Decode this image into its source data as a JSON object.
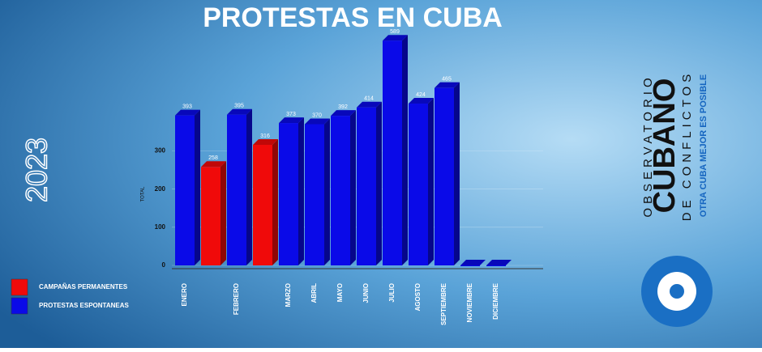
{
  "chart_data": {
    "type": "bar3d",
    "title": "PROTESTAS EN CUBA",
    "year": "2023",
    "y_label": "TOTAL",
    "categories": [
      "ENERO",
      "FEBRERO",
      "MARZO",
      "ABRIL",
      "MAYO",
      "JUNIO",
      "JULIO",
      "AGOSTO",
      "SEPTIEMBRE",
      "NOVIEMBRE",
      "DICIEMBRE"
    ],
    "series": [
      {
        "name": "PROTESTAS ESPONTANEAS",
        "color": "#0a0ae8",
        "values": [
          393,
          395,
          373,
          370,
          392,
          414,
          589,
          424,
          465,
          0,
          0
        ]
      },
      {
        "name": "CAMPAÑAS PERMANENTES",
        "color": "#f00a0a",
        "values": [
          258,
          316,
          null,
          null,
          null,
          null,
          null,
          null,
          null,
          null,
          null
        ]
      }
    ],
    "ylim": [
      0,
      600
    ],
    "yticks": [
      0,
      100,
      200,
      300
    ],
    "grid": true
  },
  "brand": {
    "line1": "OBSERVATORIO",
    "line2": "CUBANO",
    "line3": "DE CONFLICTOS",
    "slogan": "OTRA CUBA MEJOR ES POSIBLE"
  }
}
